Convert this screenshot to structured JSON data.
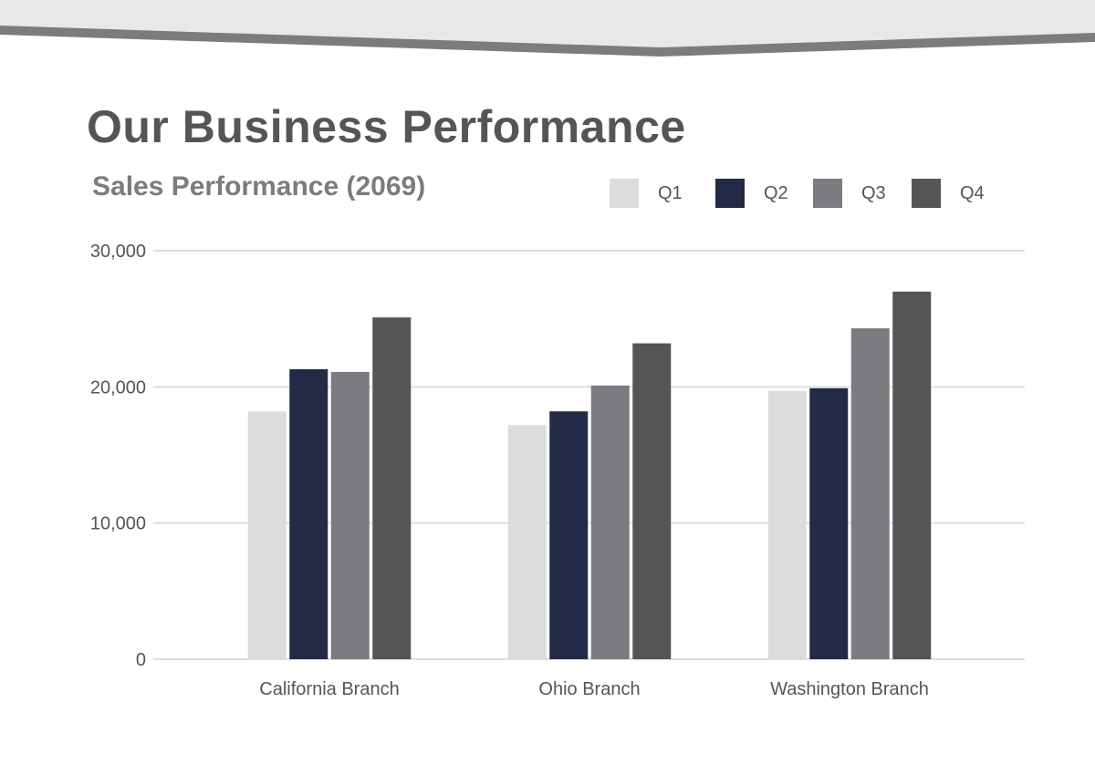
{
  "page": {
    "title": "Our Business Performance"
  },
  "colors": {
    "band_light": "#e8e8e8",
    "band_dark": "#7b7c7f",
    "gridline": "#dddddd",
    "axis_text": "#555555"
  },
  "chart_data": {
    "type": "bar",
    "title": "Sales Performance (2069)",
    "categories": [
      "California Branch",
      "Ohio Branch",
      "Washington Branch"
    ],
    "series": [
      {
        "name": "Q1",
        "color": "#dcdcdc",
        "values": [
          18200,
          17200,
          19700
        ]
      },
      {
        "name": "Q2",
        "color": "#222a45",
        "values": [
          21300,
          18200,
          19900
        ]
      },
      {
        "name": "Q3",
        "color": "#7b7c7f",
        "values": [
          21100,
          20100,
          24300
        ]
      },
      {
        "name": "Q4",
        "color": "#555555",
        "values": [
          25100,
          23200,
          27000
        ]
      }
    ],
    "yticks": [
      0,
      10000,
      20000,
      30000
    ],
    "ytick_labels": [
      "0",
      "10,000",
      "20,000",
      "30,000"
    ],
    "ylim": [
      0,
      30000
    ],
    "xlabel": "",
    "ylabel": "",
    "grid": true,
    "legend_position": "top-right"
  }
}
